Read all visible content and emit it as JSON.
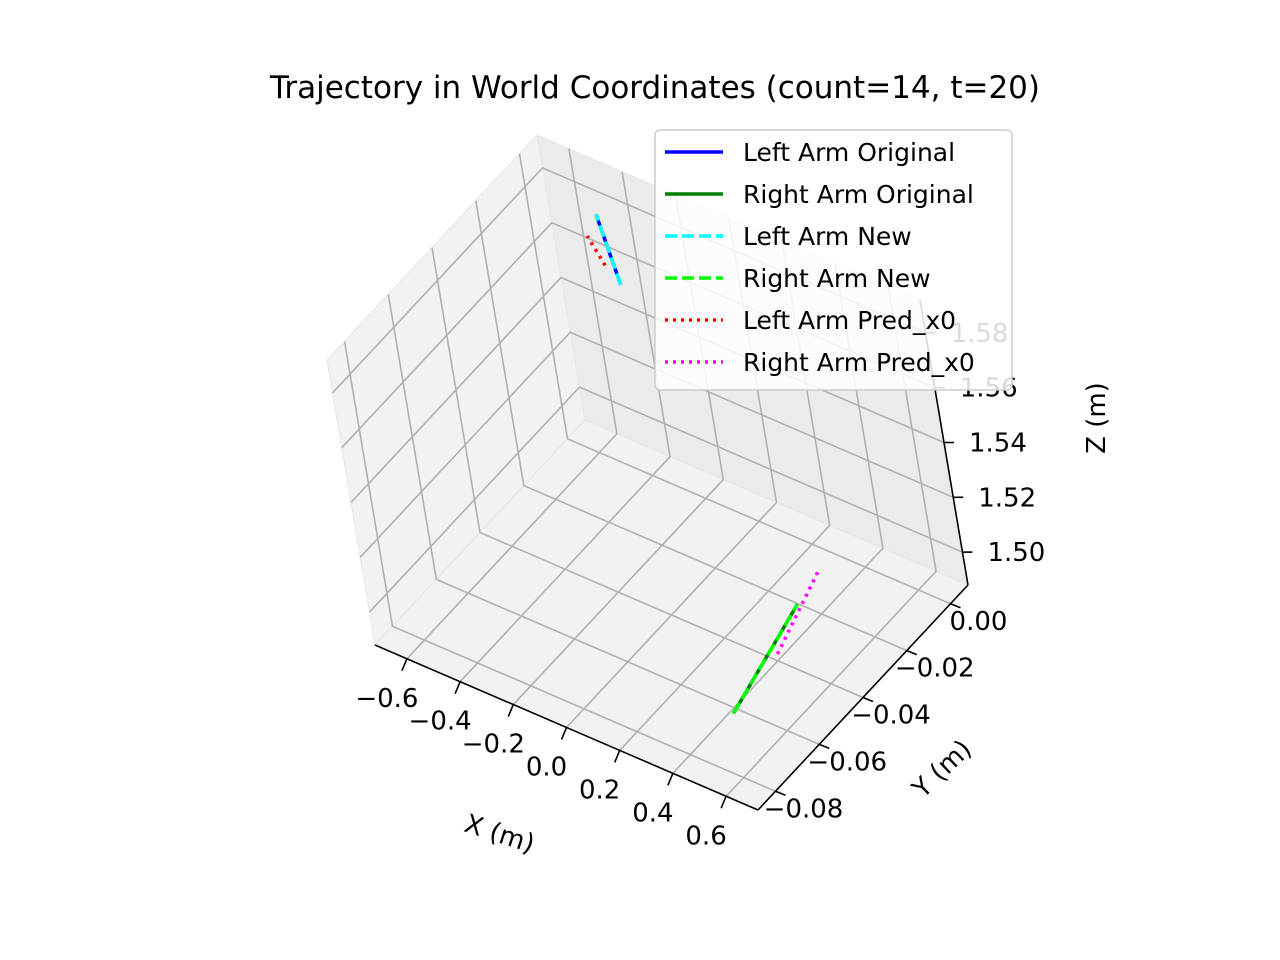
{
  "chart_data": {
    "type": "line",
    "projection": "3d",
    "title": "Trajectory in World Coordinates (count=14, t=20)",
    "xlabel": "X (m)",
    "ylabel": "Y (m)",
    "zlabel": "Z (m)",
    "xlim": [
      -0.72,
      0.72
    ],
    "ylim": [
      -0.088,
      0.008
    ],
    "zlim": [
      1.488,
      1.592
    ],
    "xticks": [
      "−0.6",
      "−0.4",
      "−0.2",
      "0.0",
      "0.2",
      "0.4",
      "0.6"
    ],
    "yticks": [
      "−0.08",
      "−0.06",
      "−0.04",
      "−0.02",
      "0.00"
    ],
    "zticks": [
      "1.50",
      "1.52",
      "1.54",
      "1.56",
      "1.58"
    ],
    "grid": true,
    "legend_position": "upper right",
    "series": [
      {
        "name": "Left Arm Original",
        "color": "#0000ff",
        "style": "solid",
        "x": [
          -0.42,
          -0.42
        ],
        "y": [
          0.002,
          -0.003
        ],
        "z": [
          1.555,
          1.585
        ]
      },
      {
        "name": "Right Arm Original",
        "color": "#008000",
        "style": "solid",
        "x": [
          0.55,
          0.57
        ],
        "y": [
          -0.075,
          -0.045
        ],
        "z": [
          1.505,
          1.52
        ]
      },
      {
        "name": "Left Arm New",
        "color": "#00ffff",
        "style": "dashed",
        "x": [
          -0.42,
          -0.42
        ],
        "y": [
          0.002,
          -0.003
        ],
        "z": [
          1.555,
          1.585
        ]
      },
      {
        "name": "Right Arm New",
        "color": "#00ff00",
        "style": "dashed",
        "x": [
          0.55,
          0.57
        ],
        "y": [
          -0.075,
          -0.045
        ],
        "z": [
          1.505,
          1.52
        ]
      },
      {
        "name": "Left Arm Pred_x0",
        "color": "#ff0000",
        "style": "dotted",
        "x": [
          -0.47,
          -0.47
        ],
        "y": [
          0.002,
          -0.003
        ],
        "z": [
          1.56,
          1.575
        ]
      },
      {
        "name": "Right Arm Pred_x0",
        "color": "#ff00ff",
        "style": "dotted",
        "x": [
          0.56,
          0.58
        ],
        "y": [
          -0.055,
          -0.035
        ],
        "z": [
          1.51,
          1.525
        ]
      }
    ]
  }
}
